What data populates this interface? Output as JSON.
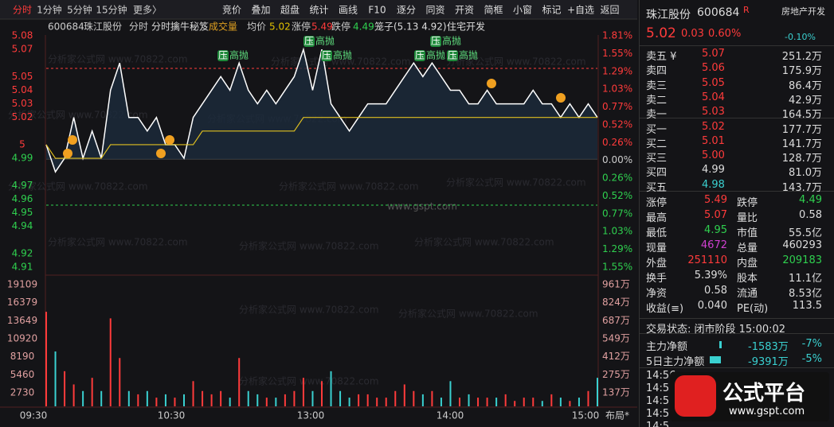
{
  "toolbar": {
    "tabs": [
      "分时",
      "1分钟",
      "5分钟",
      "15分钟",
      "更多〉"
    ],
    "buttons": [
      "竞价",
      "叠加",
      "超盘",
      "统计",
      "画线",
      "F10",
      "逐分",
      "同资",
      "开资",
      "简框",
      "小窗",
      "标记",
      "+自选",
      "返回"
    ]
  },
  "chart": {
    "header": [
      "600684",
      "珠江股份",
      "分时",
      "分时擒牛秘笈",
      "成交量",
      "均价",
      "5.02",
      "涨停",
      "5.49",
      "跌停",
      "4.49",
      "笼子(5.13 4.92)",
      "住宅开发"
    ],
    "price_ticks": [
      5.08,
      5.07,
      5.05,
      5.04,
      5.03,
      5.02,
      5.0,
      4.99,
      4.97,
      4.96,
      4.95,
      4.94,
      4.92,
      4.91
    ],
    "pct_labels": [
      "1.81%",
      "1.55%",
      "1.29%",
      "1.03%",
      "0.77%",
      "0.52%",
      "0.26%",
      "0.00%",
      "0.26%",
      "0.52%",
      "0.77%",
      "1.03%",
      "1.29%",
      "1.55%"
    ],
    "volume_ticks": [
      19109,
      16379,
      13649,
      10920,
      8190,
      5460,
      2730
    ],
    "volume_right_labels": [
      "961万",
      "824万",
      "687万",
      "549万",
      "412万",
      "275万",
      "137万"
    ],
    "time_labels": [
      "09:30",
      "10:30",
      "13:00",
      "14:00",
      "15:00"
    ],
    "layout_label": "布局*",
    "marker_icon": "压",
    "marker_text": "高抛",
    "watermark": "分析家公式网 www.70822.com",
    "site": "www.gspt.com",
    "price": [
      5.0,
      4.98,
      4.99,
      5.02,
      4.99,
      5.01,
      4.99,
      5.04,
      5.06,
      5.02,
      5.02,
      5.01,
      5.02,
      5.0,
      5.0,
      4.99,
      5.02,
      5.03,
      5.04,
      5.05,
      5.04,
      5.06,
      5.04,
      5.03,
      5.04,
      5.03,
      5.04,
      5.05,
      5.07,
      5.04,
      5.07,
      5.03,
      5.02,
      5.01,
      5.02,
      5.03,
      5.03,
      5.03,
      5.04,
      5.05,
      5.06,
      5.05,
      5.06,
      5.05,
      5.04,
      5.04,
      5.03,
      5.03,
      5.04,
      5.03,
      5.03,
      5.03,
      5.03,
      5.04,
      5.03,
      5.03,
      5.02,
      5.03,
      5.02,
      5.03,
      5.02
    ],
    "average": [
      5.0,
      4.99,
      4.99,
      4.99,
      4.99,
      4.99,
      4.99,
      5.0,
      5.0,
      5.0,
      5.0,
      5.0,
      5.0,
      5.0,
      5.0,
      5.0,
      5.0,
      5.01,
      5.01,
      5.01,
      5.01,
      5.01,
      5.01,
      5.01,
      5.01,
      5.01,
      5.01,
      5.01,
      5.02,
      5.02,
      5.02,
      5.02,
      5.02,
      5.02,
      5.02,
      5.02,
      5.02,
      5.02,
      5.02,
      5.02,
      5.02,
      5.02,
      5.02,
      5.02,
      5.02,
      5.02,
      5.02,
      5.02,
      5.02,
      5.02,
      5.02,
      5.02,
      5.02,
      5.02,
      5.02,
      5.02,
      5.02,
      5.02,
      5.02,
      5.02,
      5.02
    ],
    "volume": [
      15000,
      9000,
      6000,
      4000,
      3000,
      5000,
      3000,
      14000,
      8000,
      3000,
      2500,
      3000,
      2000,
      2500,
      2000,
      2500,
      4500,
      3000,
      2500,
      3000,
      2000,
      8000,
      3000,
      2500,
      2000,
      2000,
      2500,
      3000,
      5000,
      3000,
      4500,
      6000,
      3000,
      2000,
      2500,
      2500,
      2000,
      2000,
      3000,
      4000,
      3000,
      2500,
      3000,
      2000,
      4500,
      2000,
      2500,
      2000,
      2000,
      2000,
      2500,
      1500,
      2000,
      2000,
      1500,
      2500,
      2000,
      1500,
      2000,
      3000,
      5000
    ]
  },
  "quote": {
    "name": "珠江股份",
    "code": "600684",
    "flag": "R",
    "sector": "房地产开发",
    "sector_change": "-0.10%",
    "price": "5.02",
    "change": "0.03",
    "change_pct": "0.60%",
    "book": [
      [
        "卖五 ¥",
        "5.07",
        "251.2万"
      ],
      [
        "卖四",
        "5.06",
        "175.9万"
      ],
      [
        "卖三",
        "5.05",
        "86.4万"
      ],
      [
        "卖二",
        "5.04",
        "42.9万"
      ],
      [
        "卖一",
        "5.03",
        "164.5万"
      ],
      [
        "买一",
        "5.02",
        "177.7万"
      ],
      [
        "买二",
        "5.01",
        "141.7万"
      ],
      [
        "买三",
        "5.00",
        "128.7万"
      ],
      [
        "买四",
        "4.99",
        "81.0万"
      ],
      [
        "买五",
        "4.98",
        "143.7万"
      ]
    ],
    "stats": [
      [
        "涨停",
        "5.49",
        "跌停",
        "4.49"
      ],
      [
        "最高",
        "5.07",
        "量比",
        "0.58"
      ],
      [
        "最低",
        "4.95",
        "市值",
        "55.5亿"
      ],
      [
        "现量",
        "4672",
        "总量",
        "460293"
      ],
      [
        "外盘",
        "251110",
        "内盘",
        "209183"
      ],
      [
        "换手",
        "5.39%",
        "股本",
        "11.1亿"
      ],
      [
        "净资",
        "0.58",
        "流通",
        "8.53亿"
      ],
      [
        "收益(≡)",
        "0.040",
        "PE(动)",
        "113.5"
      ]
    ],
    "status": "交易状态: 闭市阶段 15:00:02",
    "flows": [
      [
        "主力净额",
        "-1583万",
        "-7%"
      ],
      [
        "5日主力净额",
        "-9391万",
        "-5%"
      ]
    ],
    "tick_times": [
      "14:56",
      "14:5",
      "14:5",
      "14:5",
      "14:5"
    ],
    "logo": "公式平台",
    "logo_url": "www.gspt.com"
  }
}
